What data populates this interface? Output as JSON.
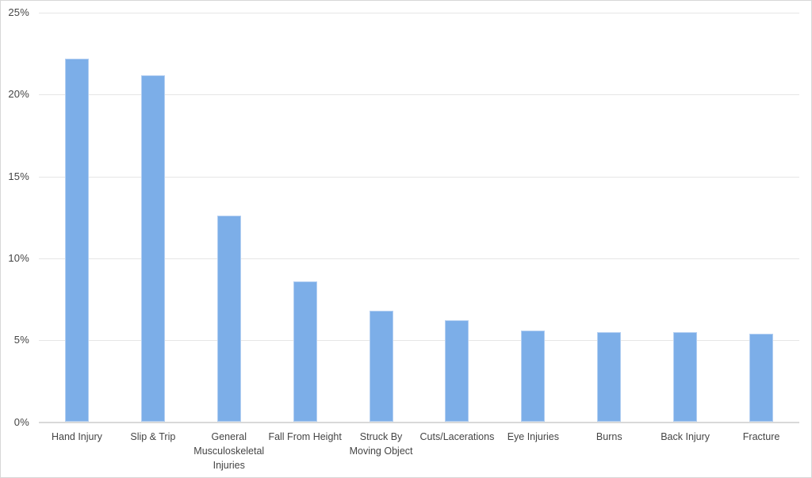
{
  "chart_data": {
    "type": "bar",
    "title": "",
    "xlabel": "",
    "ylabel": "",
    "categories": [
      "Hand Injury",
      "Slip & Trip",
      "General\nMusculoskeletal\nInjuries",
      "Fall From Height",
      "Struck By\nMoving Object",
      "Cuts/Lacerations",
      "Eye Injuries",
      "Burns",
      "Back Injury",
      "Fracture"
    ],
    "values": [
      22.2,
      21.2,
      12.6,
      8.6,
      6.8,
      6.2,
      5.6,
      5.5,
      5.5,
      5.4
    ],
    "ylim": [
      0,
      25
    ],
    "yticks": [
      {
        "value": 0,
        "label": "0%"
      },
      {
        "value": 5,
        "label": "5%"
      },
      {
        "value": 10,
        "label": "10%"
      },
      {
        "value": 15,
        "label": "15%"
      },
      {
        "value": 20,
        "label": "20%"
      },
      {
        "value": 25,
        "label": "25%"
      }
    ],
    "grid": true,
    "legend": false,
    "colors": {
      "bar_fill": "#7caee8",
      "bar_border": "#b3cff2",
      "gridline": "#e6e6e6",
      "axis_line": "#d9d9d9",
      "tick_text": "#454545",
      "frame_border": "#d7d7d7",
      "background": "#ffffff"
    }
  }
}
